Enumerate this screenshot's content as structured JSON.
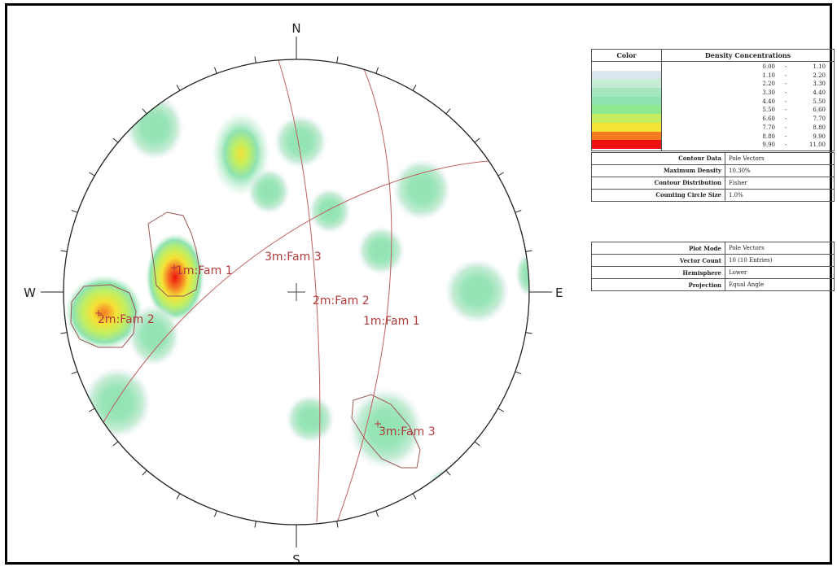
{
  "compass": {
    "north": "N",
    "south": "S",
    "east": "E",
    "west": "W"
  },
  "sets": [
    {
      "name": "1m:Fam 1"
    },
    {
      "name": "2m:Fam 2"
    },
    {
      "name": "3m:Fam 3"
    }
  ],
  "pole_labels": [
    "1m:Fam 1",
    "2m:Fam 2",
    "3m:Fam 3"
  ],
  "legend": {
    "color_header": "Color",
    "density_header": "Density Concentrations",
    "ranges": [
      {
        "lo": "0.00",
        "hi": "1.10",
        "color": "#ffffff"
      },
      {
        "lo": "1.10",
        "hi": "2.20",
        "color": "#dbe5ee"
      },
      {
        "lo": "2.20",
        "hi": "3.30",
        "color": "#c6ecd6"
      },
      {
        "lo": "3.30",
        "hi": "4.40",
        "color": "#a4e6bf"
      },
      {
        "lo": "4.40",
        "hi": "5.50",
        "color": "#8fe3b0"
      },
      {
        "lo": "5.50",
        "hi": "6.60",
        "color": "#8ee88e"
      },
      {
        "lo": "6.60",
        "hi": "7.70",
        "color": "#c4ee5e"
      },
      {
        "lo": "7.70",
        "hi": "8.80",
        "color": "#f5e236"
      },
      {
        "lo": "8.80",
        "hi": "9.90",
        "color": "#f47b22"
      },
      {
        "lo": "9.90",
        "hi": "11.00",
        "color": "#ee1111"
      }
    ],
    "contour_props": [
      {
        "key": "Contour Data",
        "value": "Pole Vectors"
      },
      {
        "key": "Maximum Density",
        "value": "10.30%"
      },
      {
        "key": "Contour Distribution",
        "value": "Fisher"
      },
      {
        "key": "Counting Circle Size",
        "value": "1.0%"
      }
    ],
    "plot_props": [
      {
        "key": "Plot Mode",
        "value": "Pole Vectors"
      },
      {
        "key": "Vector Count",
        "value": "10 (10 Entries)"
      },
      {
        "key": "Hemisphere",
        "value": "Lower"
      },
      {
        "key": "Projection",
        "value": "Equal Angle"
      }
    ]
  }
}
